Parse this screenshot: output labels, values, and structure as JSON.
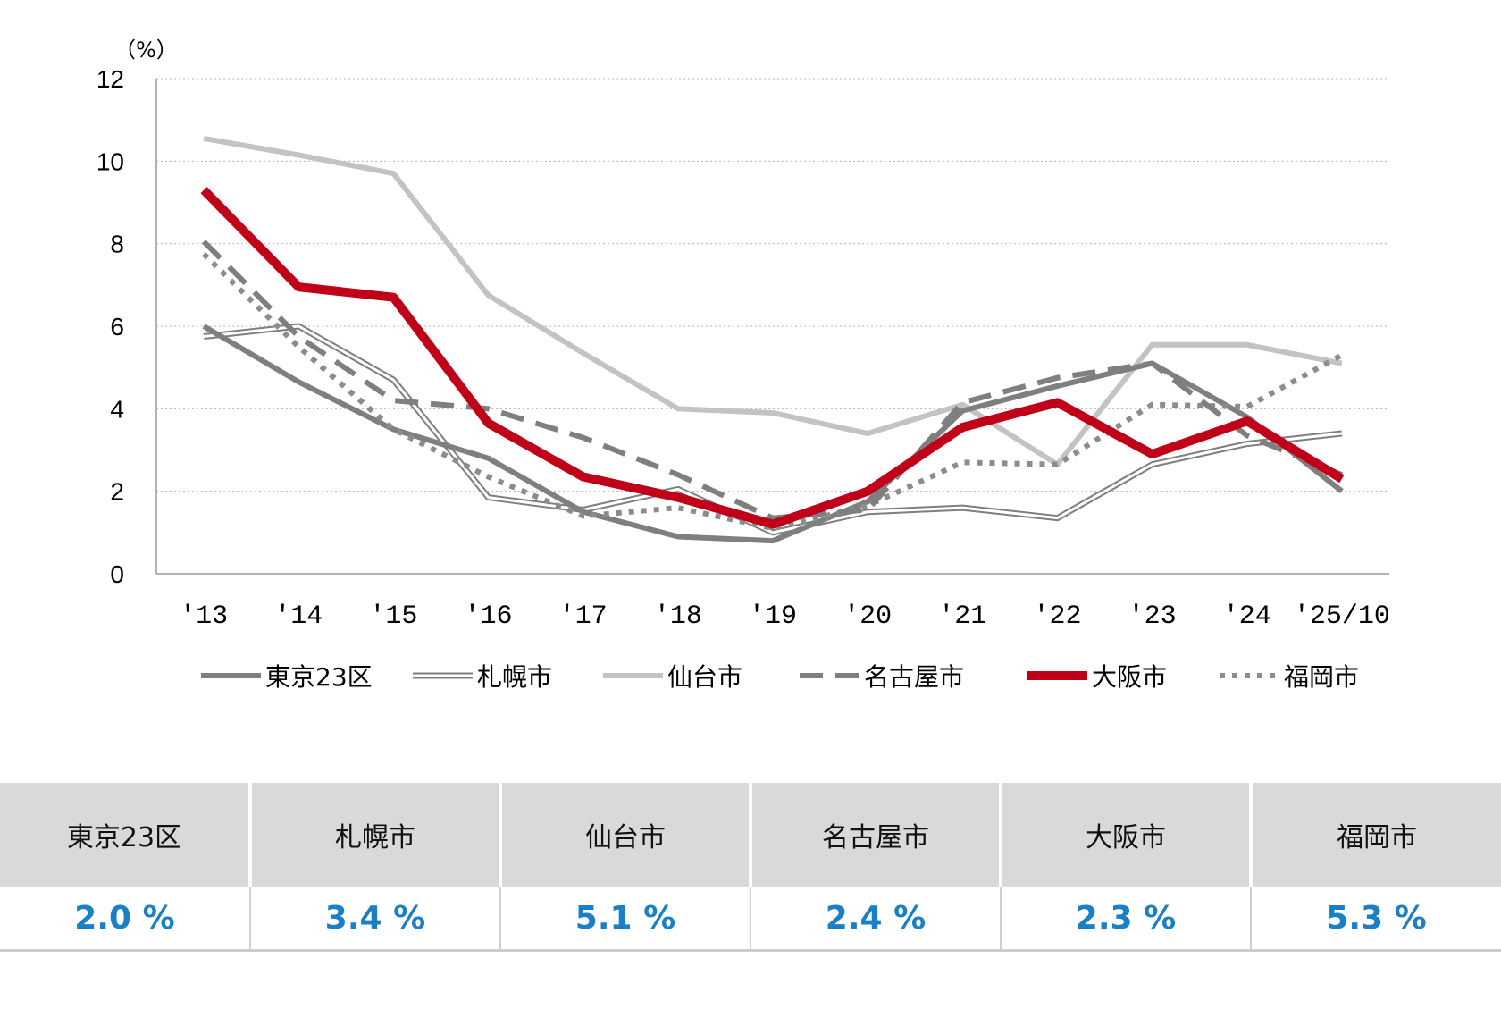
{
  "chart_data": {
    "type": "line",
    "unit_label": "（%）",
    "ylim": [
      0,
      12
    ],
    "yticks": [
      "0",
      "2",
      "4",
      "6",
      "8",
      "10",
      "12"
    ],
    "grid": "horizontal dotted",
    "legend_position": "bottom",
    "categories": [
      "'13",
      "'14",
      "'15",
      "'16",
      "'17",
      "'18",
      "'19",
      "'20",
      "'21",
      "'22",
      "'23",
      "'24",
      "'25/10"
    ],
    "series": [
      {
        "name": "東京23区",
        "style": "thick-gray",
        "color": "#7f7f7f",
        "values": [
          6.0,
          4.65,
          3.5,
          2.8,
          1.5,
          0.9,
          0.8,
          1.75,
          3.95,
          4.55,
          5.1,
          3.8,
          2.0
        ]
      },
      {
        "name": "札幌市",
        "style": "double-line",
        "color": "#7f7f7f",
        "values": [
          5.75,
          6.0,
          4.7,
          1.85,
          1.55,
          2.05,
          1.0,
          1.5,
          1.6,
          1.35,
          2.65,
          3.15,
          3.4
        ]
      },
      {
        "name": "仙台市",
        "style": "thick-light-gray",
        "color": "#c3c3c3",
        "values": [
          10.55,
          10.15,
          9.7,
          6.75,
          5.35,
          4.0,
          3.9,
          3.4,
          4.1,
          2.65,
          5.55,
          5.55,
          5.1
        ]
      },
      {
        "name": "名古屋市",
        "style": "dashed-gray",
        "color": "#7f7f7f",
        "values": [
          8.05,
          5.75,
          4.2,
          4.0,
          3.3,
          2.4,
          1.35,
          1.55,
          4.15,
          4.75,
          5.1,
          3.35,
          2.4
        ]
      },
      {
        "name": "大阪市",
        "style": "thick-red",
        "color": "#c00018",
        "values": [
          9.3,
          6.95,
          6.7,
          3.65,
          2.35,
          1.85,
          1.2,
          2.0,
          3.55,
          4.15,
          2.9,
          3.7,
          2.3
        ]
      },
      {
        "name": "福岡市",
        "style": "dotted-gray",
        "color": "#8c8c8c",
        "values": [
          7.75,
          5.5,
          3.5,
          2.35,
          1.4,
          1.6,
          1.1,
          1.65,
          2.7,
          2.65,
          4.1,
          4.05,
          5.3
        ]
      }
    ]
  },
  "table": {
    "headers": [
      "東京23区",
      "札幌市",
      "仙台市",
      "名古屋市",
      "大阪市",
      "福岡市"
    ],
    "values": [
      "2.0 %",
      "3.4 %",
      "5.1 %",
      "2.4 %",
      "2.3 %",
      "5.3 %"
    ],
    "value_color": "#1a7fc4"
  }
}
